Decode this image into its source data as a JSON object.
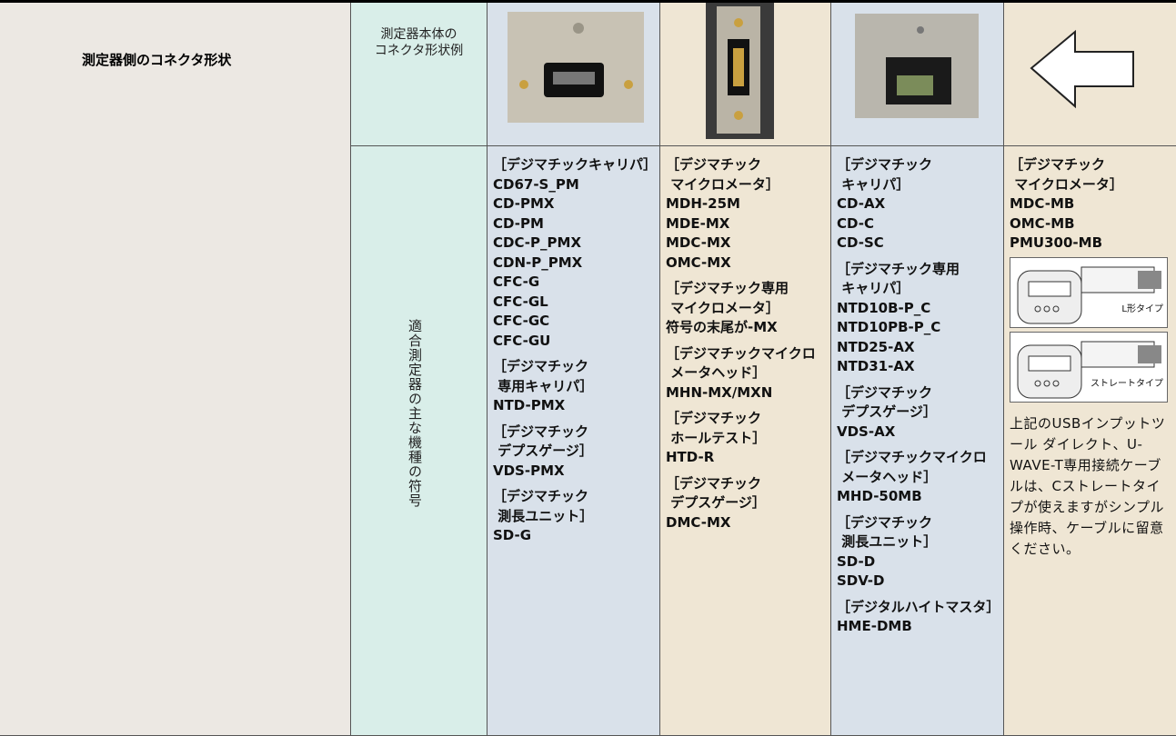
{
  "header": {
    "title": "測定器側のコネクタ形状",
    "row1_label": "測定器本体の\nコネクタ形状例",
    "row2_label": "適合測定器の主な機種の符号"
  },
  "columns": [
    {
      "groups": [
        {
          "heading": "［デジマチックキャリパ］",
          "models": [
            "CD67-S_PM",
            "CD-PMX",
            "CD-PM",
            "CDC-P_PMX",
            "CDN-P_PMX",
            "CFC-G",
            "CFC-GL",
            "CFC-GC",
            "CFC-GU"
          ]
        },
        {
          "heading": "［デジマチック\n 専用キャリパ］",
          "models": [
            "NTD-PMX"
          ]
        },
        {
          "heading": "［デジマチック\n デプスゲージ］",
          "models": [
            "VDS-PMX"
          ]
        },
        {
          "heading": "［デジマチック\n 測長ユニット］",
          "models": [
            "SD-G"
          ]
        }
      ]
    },
    {
      "groups": [
        {
          "heading": "［デジマチック\n マイクロメータ］",
          "models": [
            "MDH-25M",
            "MDE-MX",
            "MDC-MX",
            "OMC-MX"
          ]
        },
        {
          "heading": "［デジマチック専用\n マイクロメータ］",
          "models": [
            "符号の末尾が-MX"
          ]
        },
        {
          "heading": "［デジマチックマイクロ\n メータヘッド］",
          "models": [
            "MHN-MX/MXN"
          ]
        },
        {
          "heading": "［デジマチック\n ホールテスト］",
          "models": [
            "HTD-R"
          ]
        },
        {
          "heading": "［デジマチック\n デプスゲージ］",
          "models": [
            "DMC-MX"
          ]
        }
      ]
    },
    {
      "groups": [
        {
          "heading": "［デジマチック\n キャリパ］",
          "models": [
            "CD-AX",
            "CD-C",
            "CD-SC"
          ]
        },
        {
          "heading": "［デジマチック専用\n キャリパ］",
          "models": [
            "NTD10B-P_C",
            "NTD10PB-P_C",
            "NTD25-AX",
            "NTD31-AX"
          ]
        },
        {
          "heading": "［デジマチック\n デプスゲージ］",
          "models": [
            "VDS-AX"
          ]
        },
        {
          "heading": "［デジマチックマイクロ\n メータヘッド］",
          "models": [
            "MHD-50MB"
          ]
        },
        {
          "heading": "［デジマチック\n 測長ユニット］",
          "models": [
            "SD-D",
            "SDV-D"
          ]
        },
        {
          "heading": "［デジタルハイトマスタ］",
          "models": [
            "HME-DMB"
          ]
        }
      ]
    },
    {
      "groups": [
        {
          "heading": "［デジマチック\n マイクロメータ］",
          "models": [
            "MDC-MB",
            "OMC-MB",
            "PMU300-MB"
          ]
        }
      ],
      "figure_labels": [
        "L形タイプ",
        "ストレートタイプ"
      ],
      "note": "上記のUSBインプットツール ダイレクト、U-WAVE-T専用接続ケーブルは、Cストレートタイプが使えますがシンプル操作時、ケーブルに留意ください。"
    }
  ]
}
